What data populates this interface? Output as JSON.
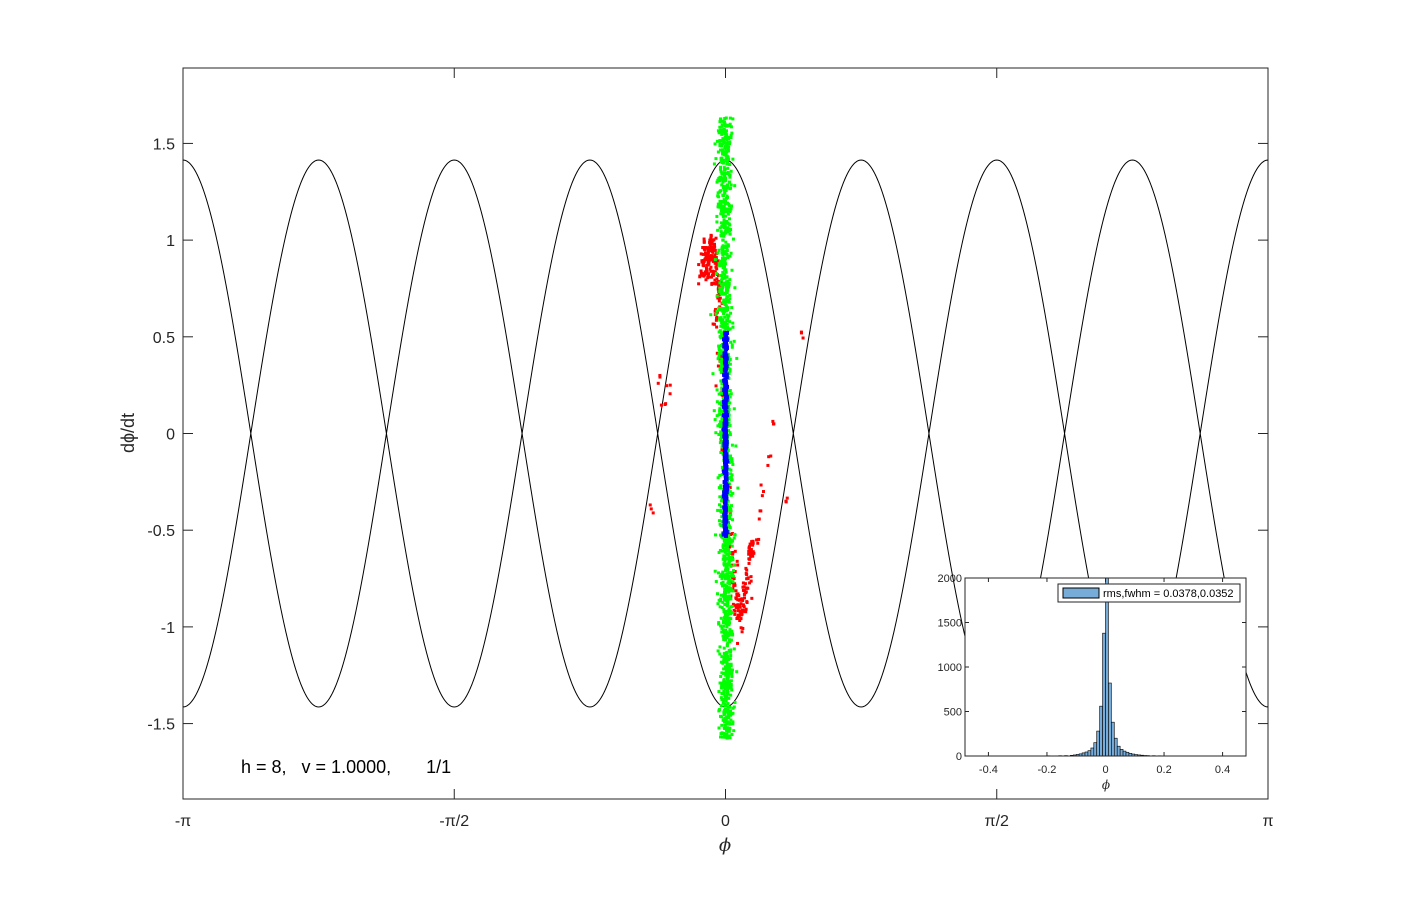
{
  "chart_data": [
    {
      "type": "scatter",
      "title": "",
      "xlabel": "ϕ",
      "ylabel": "dϕ/dt",
      "xlim": [
        -3.14159,
        3.14159
      ],
      "ylim": [
        -1.89,
        1.89
      ],
      "xticks": [
        {
          "value": -3.14159,
          "label": "-π"
        },
        {
          "value": -1.5708,
          "label": "-π/2"
        },
        {
          "value": 0,
          "label": "0"
        },
        {
          "value": 1.5708,
          "label": "π/2"
        },
        {
          "value": 3.14159,
          "label": "π"
        }
      ],
      "yticks": [
        {
          "value": 1.5,
          "label": "1.5"
        },
        {
          "value": 1,
          "label": "1"
        },
        {
          "value": 0.5,
          "label": "0.5"
        },
        {
          "value": 0,
          "label": "0"
        },
        {
          "value": -0.5,
          "label": "-0.5"
        },
        {
          "value": -1,
          "label": "-1"
        },
        {
          "value": -1.5,
          "label": "-1.5"
        }
      ],
      "grid": false,
      "annotation": "h = 8,   v = 1.0000,       1/1",
      "separatrix": {
        "harmonic": 8,
        "amplitude": 1.414,
        "color": "#000000",
        "description": "separatrix curves ±1.414·|cos(8ϕ/2)|"
      },
      "series": [
        {
          "color": "#ff0000",
          "marker": "square",
          "shape": "s-shaped distribution around ϕ≈0",
          "points": [
            [
              -0.12,
              0.95
            ],
            [
              -0.11,
              0.9
            ],
            [
              -0.1,
              0.88
            ],
            [
              -0.09,
              0.85
            ],
            [
              -0.08,
              0.92
            ],
            [
              -0.07,
              0.95
            ],
            [
              -0.06,
              0.88
            ],
            [
              -0.05,
              0.8
            ],
            [
              -0.04,
              0.75
            ],
            [
              -0.03,
              0.7
            ],
            [
              -0.13,
              0.87
            ],
            [
              -0.14,
              0.83
            ],
            [
              -0.1,
              0.95
            ],
            [
              -0.08,
              0.98
            ],
            [
              -0.07,
              0.82
            ],
            [
              -0.05,
              0.6
            ],
            [
              -0.03,
              0.4
            ],
            [
              -0.02,
              0.2
            ],
            [
              -0.01,
              0.0
            ],
            [
              0.0,
              -0.2
            ],
            [
              0.01,
              -0.4
            ],
            [
              0.02,
              -0.55
            ],
            [
              0.04,
              -0.65
            ],
            [
              0.05,
              -0.75
            ],
            [
              0.06,
              -0.85
            ],
            [
              0.07,
              -0.9
            ],
            [
              0.08,
              -0.95
            ],
            [
              0.09,
              -0.88
            ],
            [
              0.1,
              -0.92
            ],
            [
              0.11,
              -0.85
            ],
            [
              0.12,
              -0.8
            ],
            [
              0.13,
              -0.75
            ],
            [
              0.14,
              -0.65
            ],
            [
              0.15,
              -0.6
            ],
            [
              0.16,
              -0.62
            ],
            [
              0.18,
              -0.55
            ],
            [
              0.2,
              -0.4
            ],
            [
              0.22,
              -0.3
            ],
            [
              0.25,
              -0.12
            ],
            [
              0.28,
              0.05
            ],
            [
              0.35,
              -0.35
            ],
            [
              0.44,
              0.52
            ],
            [
              -0.32,
              0.25
            ],
            [
              -0.35,
              0.15
            ],
            [
              -0.43,
              -0.39
            ],
            [
              -0.38,
              0.3
            ]
          ]
        },
        {
          "color": "#00ff00",
          "marker": "square",
          "shape": "narrow vertical band at ϕ≈0",
          "phi_spread": 0.04,
          "dphi_range": [
            -1.58,
            1.64
          ]
        },
        {
          "color": "#0000ff",
          "marker": "square",
          "shape": "narrow vertical band at ϕ≈0",
          "phi_spread": 0.008,
          "dphi_range": [
            -0.53,
            0.53
          ]
        }
      ]
    },
    {
      "type": "bar",
      "subtype": "histogram",
      "xlabel": "ϕ",
      "ylabel": "",
      "xlim": [
        -0.48,
        0.48
      ],
      "ylim": [
        0,
        2000
      ],
      "xticks": [
        "-0.4",
        "-0.2",
        "0",
        "0.2",
        "0.4"
      ],
      "yticks": [
        "0",
        "500",
        "1000",
        "1500",
        "2000"
      ],
      "bar_color": "#77acd8",
      "edge_color": "#000000",
      "legend": {
        "label": "rms,fwhm = 0.0378,0.0352",
        "position": "top-right"
      },
      "bin_width": 0.01,
      "bins": [
        {
          "x": -0.195,
          "count": 3
        },
        {
          "x": -0.155,
          "count": 4
        },
        {
          "x": -0.135,
          "count": 5
        },
        {
          "x": -0.115,
          "count": 8
        },
        {
          "x": -0.105,
          "count": 12
        },
        {
          "x": -0.095,
          "count": 18
        },
        {
          "x": -0.085,
          "count": 24
        },
        {
          "x": -0.075,
          "count": 35
        },
        {
          "x": -0.065,
          "count": 45
        },
        {
          "x": -0.055,
          "count": 60
        },
        {
          "x": -0.045,
          "count": 90
        },
        {
          "x": -0.035,
          "count": 150
        },
        {
          "x": -0.025,
          "count": 280
        },
        {
          "x": -0.015,
          "count": 560
        },
        {
          "x": -0.005,
          "count": 1380
        },
        {
          "x": 0.005,
          "count": 2000
        },
        {
          "x": 0.015,
          "count": 820
        },
        {
          "x": 0.025,
          "count": 380
        },
        {
          "x": 0.035,
          "count": 200
        },
        {
          "x": 0.045,
          "count": 110
        },
        {
          "x": 0.055,
          "count": 75
        },
        {
          "x": 0.065,
          "count": 55
        },
        {
          "x": 0.075,
          "count": 42
        },
        {
          "x": 0.085,
          "count": 30
        },
        {
          "x": 0.095,
          "count": 22
        },
        {
          "x": 0.105,
          "count": 16
        },
        {
          "x": 0.115,
          "count": 12
        },
        {
          "x": 0.125,
          "count": 9
        },
        {
          "x": 0.135,
          "count": 6
        },
        {
          "x": 0.145,
          "count": 5
        },
        {
          "x": 0.165,
          "count": 4
        },
        {
          "x": 0.185,
          "count": 3
        }
      ]
    }
  ]
}
